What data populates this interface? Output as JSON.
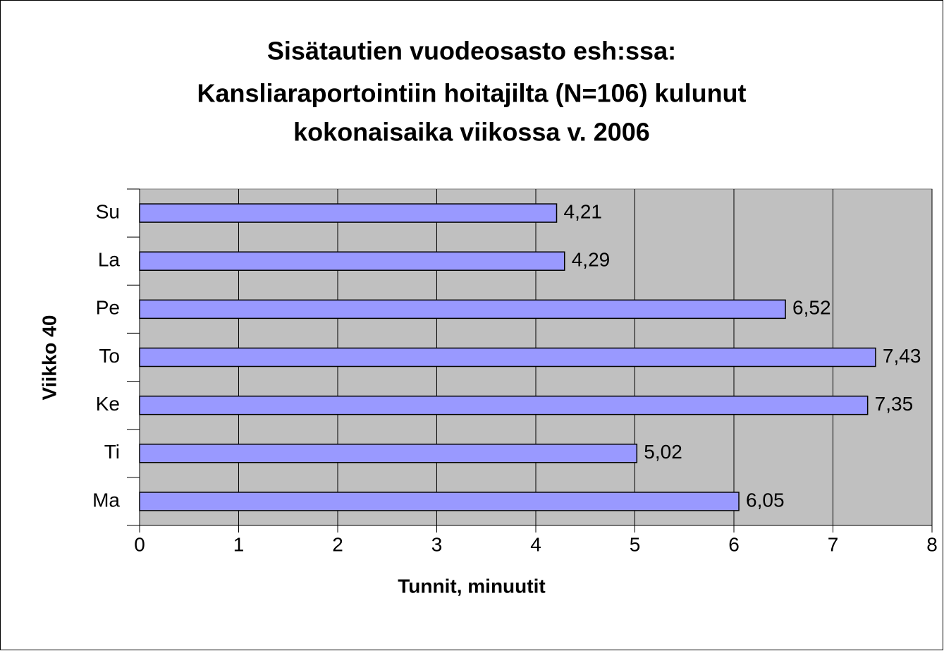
{
  "chart_data": {
    "type": "hbar",
    "title": [
      "Sisätautien vuodeosasto esh:ssa:",
      "Kansliaraportointiin hoitajilta (N=106) kulunut",
      "kokonaisaika viikossa v. 2006"
    ],
    "x_label": "Tunnit, minuutit",
    "y_label": "Viikko 40",
    "categories": [
      "Su",
      "La",
      "Pe",
      "To",
      "Ke",
      "Ti",
      "Ma"
    ],
    "values": [
      4.21,
      4.29,
      6.52,
      7.43,
      7.35,
      5.02,
      6.05
    ],
    "value_labels": [
      "4,21",
      "4,29",
      "6,52",
      "7,43",
      "7,35",
      "5,02",
      "6,05"
    ],
    "color": "#9999ff",
    "xlim": [
      0,
      8
    ],
    "xticks": [
      0,
      1,
      2,
      3,
      4,
      5,
      6,
      7,
      8
    ],
    "grid": true
  }
}
